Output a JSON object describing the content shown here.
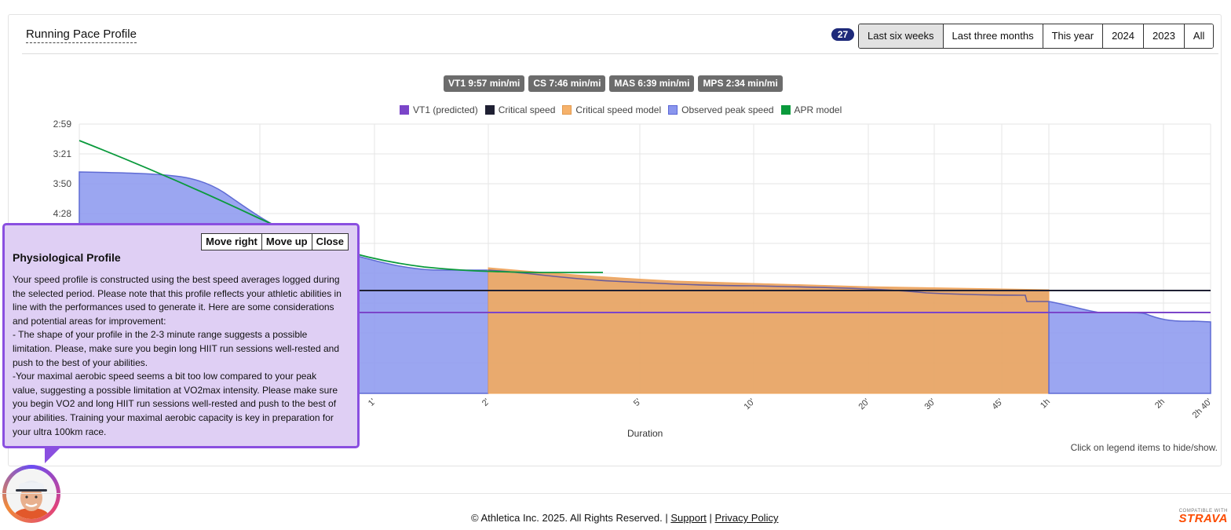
{
  "header": {
    "title": "Running Pace Profile",
    "count_badge": "27",
    "ranges": [
      "Last six weeks",
      "Last three months",
      "This year",
      "2024",
      "2023",
      "All"
    ],
    "active_range": "Last six weeks"
  },
  "pills": [
    "VT1 9:57 min/mi",
    "CS 7:46 min/mi",
    "MAS 6:39 min/mi",
    "MPS 2:34 min/mi"
  ],
  "legend": [
    {
      "label": "VT1 (predicted)",
      "color": "#7b45c9"
    },
    {
      "label": "Critical speed",
      "color": "#1f2033"
    },
    {
      "label": "Critical speed model",
      "color": "#f6b26b"
    },
    {
      "label": "Observed peak speed",
      "color": "#8a96ee"
    },
    {
      "label": "APR model",
      "color": "#0a9a3c"
    }
  ],
  "chart_data": {
    "type": "area",
    "xlabel": "Duration",
    "x_ticks": [
      "1'",
      "2'",
      "5'",
      "10'",
      "20'",
      "30'",
      "45'",
      "1h",
      "2h",
      "2h 40'"
    ],
    "y_ticks": [
      "2:59",
      "3:21",
      "3:50",
      "4:28"
    ],
    "y_scale": "reciprocal (pace)",
    "x_scale": "log"
  },
  "hint": "Click on legend items to hide/show.",
  "popup": {
    "title": "Physiological Profile",
    "buttons": [
      "Move right",
      "Move up",
      "Close"
    ],
    "body": "Your speed profile is constructed using the best speed averages logged during the selected period. Please note that this profile reflects your athletic abilities in line with the performances used to generate it. Here are some considerations and potential areas for improvement:\n- The shape of your profile in the 2-3 minute range suggests a possible limitation. Please, make sure you begin long HIIT run sessions well-rested and push to the best of your abilities.\n-Your maximal aerobic speed seems a bit too low compared to your peak value, suggesting a possible limitation at VO2max intensity. Please make sure you begin VO2 and long HIIT run sessions well-rested and push to the best of your abilities. Training your maximal aerobic capacity is key in preparation for your ultra 100km race."
  },
  "footer": {
    "copyright": "© Athletica Inc. 2025. All Rights Reserved.",
    "separator": "|",
    "support": "Support",
    "privacy": "Privacy Policy"
  },
  "strava": {
    "small": "COMPATIBLE WITH",
    "big": "STRAVA"
  }
}
